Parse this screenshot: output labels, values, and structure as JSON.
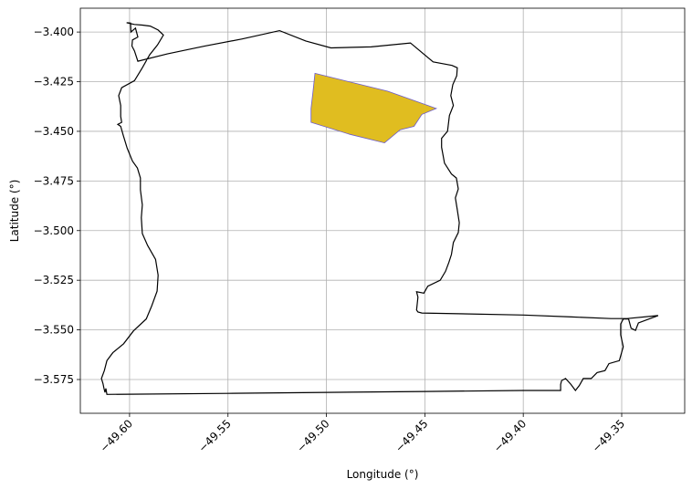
{
  "map": {
    "xlabel": "Longitude (°)",
    "ylabel": "Latitude (°)",
    "x_ticks": [
      "−49.60",
      "−49.55",
      "−49.50",
      "−49.45",
      "−49.40",
      "−49.35"
    ],
    "y_ticks": [
      "−3.400",
      "−3.425",
      "−3.450",
      "−3.475",
      "−3.500",
      "−3.525",
      "−3.550",
      "−3.575"
    ],
    "colors": {
      "boundary": "#000000",
      "polygon_fill": "#e0bd20",
      "polygon_edge": "#6a5acd",
      "grid": "#b0b0b0"
    }
  },
  "chart_data": {
    "type": "map",
    "xlim": [
      -49.625,
      -49.318
    ],
    "ylim": [
      -3.592,
      -3.388
    ],
    "grid": true,
    "boundary": [
      [
        -49.6015,
        -3.3953
      ],
      [
        -49.5995,
        -3.3955
      ],
      [
        -49.5993,
        -3.4
      ],
      [
        -49.597,
        -3.398
      ],
      [
        -49.5958,
        -3.4025
      ],
      [
        -49.5985,
        -3.404
      ],
      [
        -49.5988,
        -3.407
      ],
      [
        -49.5975,
        -3.4095
      ],
      [
        -49.5958,
        -3.4147
      ],
      [
        -49.5808,
        -3.411
      ],
      [
        -49.5617,
        -3.407
      ],
      [
        -49.5428,
        -3.4035
      ],
      [
        -49.5238,
        -3.3993
      ],
      [
        -49.5105,
        -3.4045
      ],
      [
        -49.4977,
        -3.408
      ],
      [
        -49.4773,
        -3.4075
      ],
      [
        -49.4573,
        -3.4055
      ],
      [
        -49.4458,
        -3.415
      ],
      [
        -49.4362,
        -3.4168
      ],
      [
        -49.4335,
        -3.418
      ],
      [
        -49.4338,
        -3.422
      ],
      [
        -49.4358,
        -3.4265
      ],
      [
        -49.4368,
        -3.432
      ],
      [
        -49.4355,
        -3.437
      ],
      [
        -49.4375,
        -3.442
      ],
      [
        -49.4385,
        -3.45
      ],
      [
        -49.4415,
        -3.4535
      ],
      [
        -49.4415,
        -3.458
      ],
      [
        -49.44,
        -3.466
      ],
      [
        -49.4365,
        -3.4715
      ],
      [
        -49.434,
        -3.4735
      ],
      [
        -49.433,
        -3.479
      ],
      [
        -49.4345,
        -3.4835
      ],
      [
        -49.4335,
        -3.4895
      ],
      [
        -49.4325,
        -3.496
      ],
      [
        -49.433,
        -3.501
      ],
      [
        -49.4355,
        -3.506
      ],
      [
        -49.4365,
        -3.512
      ],
      [
        -49.4378,
        -3.516
      ],
      [
        -49.4395,
        -3.5205
      ],
      [
        -49.4422,
        -3.525
      ],
      [
        -49.4485,
        -3.528
      ],
      [
        -49.4505,
        -3.5315
      ],
      [
        -49.4542,
        -3.5308
      ],
      [
        -49.4535,
        -3.5335
      ],
      [
        -49.4542,
        -3.54
      ],
      [
        -49.4535,
        -3.541
      ],
      [
        -49.4515,
        -3.5415
      ],
      [
        -49.4,
        -3.5425
      ],
      [
        -49.3755,
        -3.5435
      ],
      [
        -49.3555,
        -3.5443
      ],
      [
        -49.3472,
        -3.5443
      ],
      [
        -49.3315,
        -3.5428
      ],
      [
        -49.3415,
        -3.5465
      ],
      [
        -49.343,
        -3.5503
      ],
      [
        -49.3452,
        -3.5492
      ],
      [
        -49.3465,
        -3.5445
      ],
      [
        -49.3492,
        -3.5445
      ],
      [
        -49.3505,
        -3.547
      ],
      [
        -49.3505,
        -3.5525
      ],
      [
        -49.3492,
        -3.5585
      ],
      [
        -49.3512,
        -3.5655
      ],
      [
        -49.3565,
        -3.567
      ],
      [
        -49.3585,
        -3.5705
      ],
      [
        -49.3625,
        -3.5715
      ],
      [
        -49.3655,
        -3.5745
      ],
      [
        -49.3695,
        -3.5745
      ],
      [
        -49.3715,
        -3.578
      ],
      [
        -49.3735,
        -3.5805
      ],
      [
        -49.3758,
        -3.5775
      ],
      [
        -49.3785,
        -3.5745
      ],
      [
        -49.3805,
        -3.5755
      ],
      [
        -49.381,
        -3.5775
      ],
      [
        -49.381,
        -3.5805
      ],
      [
        -49.4,
        -3.5805
      ],
      [
        -49.45,
        -3.581
      ],
      [
        -49.5,
        -3.5815
      ],
      [
        -49.55,
        -3.582
      ],
      [
        -49.6115,
        -3.5825
      ],
      [
        -49.612,
        -3.5795
      ],
      [
        -49.6125,
        -3.5815
      ],
      [
        -49.613,
        -3.5795
      ],
      [
        -49.6135,
        -3.577
      ],
      [
        -49.6143,
        -3.5745
      ],
      [
        -49.6128,
        -3.5705
      ],
      [
        -49.6115,
        -3.5655
      ],
      [
        -49.6085,
        -3.5615
      ],
      [
        -49.603,
        -3.557
      ],
      [
        -49.598,
        -3.5505
      ],
      [
        -49.5915,
        -3.5445
      ],
      [
        -49.5888,
        -3.538
      ],
      [
        -49.586,
        -3.5305
      ],
      [
        -49.5855,
        -3.5225
      ],
      [
        -49.5868,
        -3.5145
      ],
      [
        -49.5908,
        -3.5075
      ],
      [
        -49.5935,
        -3.5015
      ],
      [
        -49.594,
        -3.4935
      ],
      [
        -49.5935,
        -3.487
      ],
      [
        -49.5945,
        -3.4795
      ],
      [
        -49.5945,
        -3.4735
      ],
      [
        -49.596,
        -3.4685
      ],
      [
        -49.5985,
        -3.465
      ],
      [
        -49.6012,
        -3.4585
      ],
      [
        -49.6032,
        -3.452
      ],
      [
        -49.6045,
        -3.4475
      ],
      [
        -49.606,
        -3.4465
      ],
      [
        -49.604,
        -3.4455
      ],
      [
        -49.6045,
        -3.4425
      ],
      [
        -49.6045,
        -3.437
      ],
      [
        -49.6055,
        -3.432
      ],
      [
        -49.604,
        -3.428
      ],
      [
        -49.5975,
        -3.4245
      ],
      [
        -49.5935,
        -3.418
      ],
      [
        -49.5898,
        -3.4115
      ],
      [
        -49.5858,
        -3.4065
      ],
      [
        -49.5828,
        -3.4015
      ],
      [
        -49.5855,
        -3.399
      ],
      [
        -49.5895,
        -3.397
      ],
      [
        -49.5935,
        -3.3965
      ],
      [
        -49.5975,
        -3.3962
      ],
      [
        -49.6015,
        -3.3953
      ]
    ],
    "polygon": [
      [
        -49.5058,
        -3.4208
      ],
      [
        -49.4688,
        -3.4298
      ],
      [
        -49.4442,
        -3.4385
      ],
      [
        -49.4515,
        -3.4415
      ],
      [
        -49.4555,
        -3.4475
      ],
      [
        -49.4625,
        -3.4492
      ],
      [
        -49.4705,
        -3.4558
      ],
      [
        -49.4882,
        -3.4515
      ],
      [
        -49.5078,
        -3.4455
      ],
      [
        -49.5078,
        -3.4385
      ],
      [
        -49.5068,
        -3.4298
      ],
      [
        -49.5058,
        -3.4208
      ]
    ]
  }
}
